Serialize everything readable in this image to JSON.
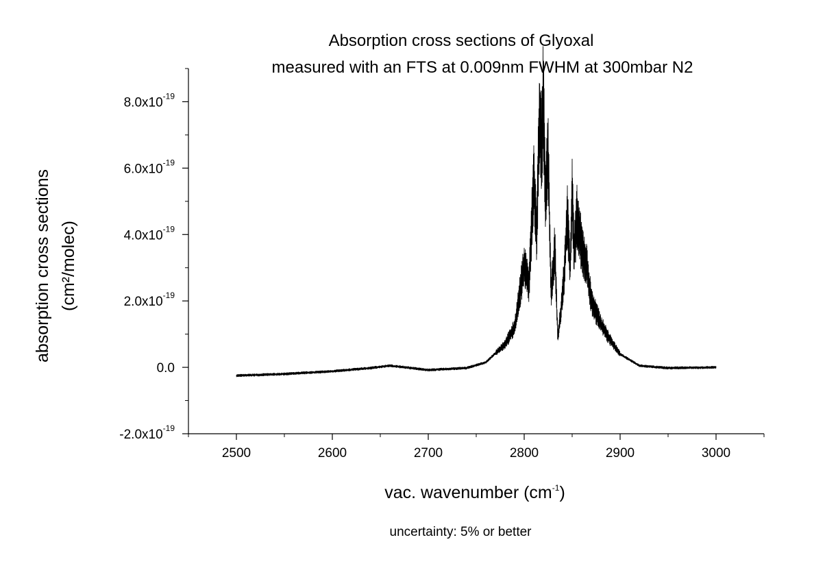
{
  "chart_data": {
    "type": "line",
    "title_line1": "Absorption cross sections of Glyoxal",
    "title_line2": "measured with an FTS at 0.009nm FWHM at 300mbar N2",
    "xlabel_main": "vac. wavenumber (cm",
    "xlabel_sup": "-1",
    "xlabel_end": ")",
    "ylabel_line1": "absorption cross sections",
    "ylabel_line2": "(cm²/molec)",
    "footnote": "uncertainty: 5% or better",
    "xlim": [
      2450,
      3050
    ],
    "ylim": [
      -2e-19,
      9e-19
    ],
    "x_ticks": [
      {
        "value": 2500,
        "label": "2500"
      },
      {
        "value": 2600,
        "label": "2600"
      },
      {
        "value": 2700,
        "label": "2700"
      },
      {
        "value": 2800,
        "label": "2800"
      },
      {
        "value": 2900,
        "label": "2900"
      },
      {
        "value": 3000,
        "label": "3000"
      }
    ],
    "y_ticks": [
      {
        "value": -2e-19,
        "mant": "-2.0x10",
        "exp": "-19"
      },
      {
        "value": 0,
        "mant": "0.0",
        "exp": ""
      },
      {
        "value": 2e-19,
        "mant": "2.0x10",
        "exp": "-19"
      },
      {
        "value": 4e-19,
        "mant": "4.0x10",
        "exp": "-19"
      },
      {
        "value": 6e-19,
        "mant": "6.0x10",
        "exp": "-19"
      },
      {
        "value": 8e-19,
        "mant": "8.0x10",
        "exp": "-19"
      }
    ],
    "series": [
      {
        "color": "#000000",
        "x": [
          2500,
          2550,
          2600,
          2640,
          2660,
          2700,
          2740,
          2760,
          2780,
          2790,
          2800,
          2805,
          2810,
          2813,
          2816,
          2818,
          2820,
          2822,
          2825,
          2828,
          2832,
          2835,
          2838,
          2842,
          2845,
          2848,
          2850,
          2852,
          2855,
          2860,
          2865,
          2870,
          2880,
          2890,
          2900,
          2920,
          2950,
          3000
        ],
        "y": [
          -2.5e-20,
          -2e-20,
          -1.2e-20,
          -2e-21,
          5e-21,
          -8e-21,
          -2e-21,
          1.5e-20,
          7e-20,
          1.2e-19,
          3.1e-19,
          2.5e-19,
          5.7e-19,
          4e-19,
          7.8e-19,
          6.5e-19,
          8.25e-19,
          5e-19,
          6.4e-19,
          2.2e-19,
          3.6e-19,
          9e-20,
          1.6e-19,
          2.9e-19,
          4.6e-19,
          3e-19,
          5.45e-19,
          3.4e-19,
          4.5e-19,
          3.6e-19,
          3.1e-19,
          2e-19,
          1.3e-19,
          8e-20,
          4e-20,
          5e-21,
          -2e-21,
          0.0
        ]
      }
    ]
  }
}
